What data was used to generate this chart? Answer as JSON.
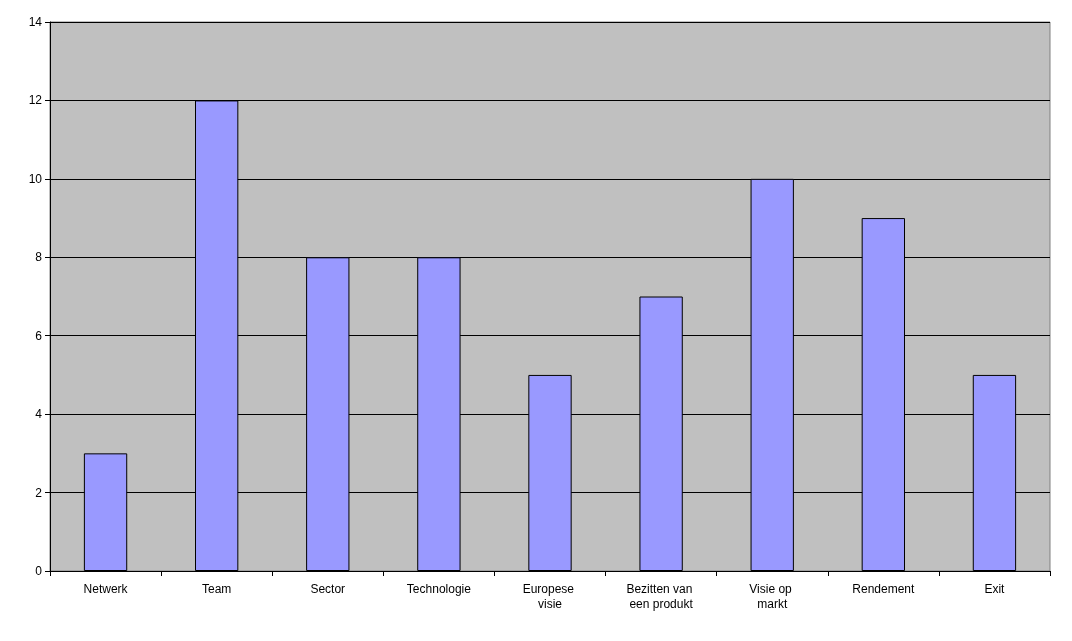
{
  "chart_data": {
    "type": "bar",
    "categories": [
      "Netwerk",
      "Team",
      "Sector",
      "Technologie",
      "Europese visie",
      "Bezitten van een produkt",
      "Visie op markt",
      "Rendement",
      "Exit"
    ],
    "values": [
      3,
      12,
      8,
      8,
      5,
      7,
      10,
      9,
      5
    ],
    "color": "#9999ff",
    "ylim": [
      0,
      14
    ],
    "yticks": [
      0,
      2,
      4,
      6,
      8,
      10,
      12,
      14
    ],
    "grid": "y"
  }
}
